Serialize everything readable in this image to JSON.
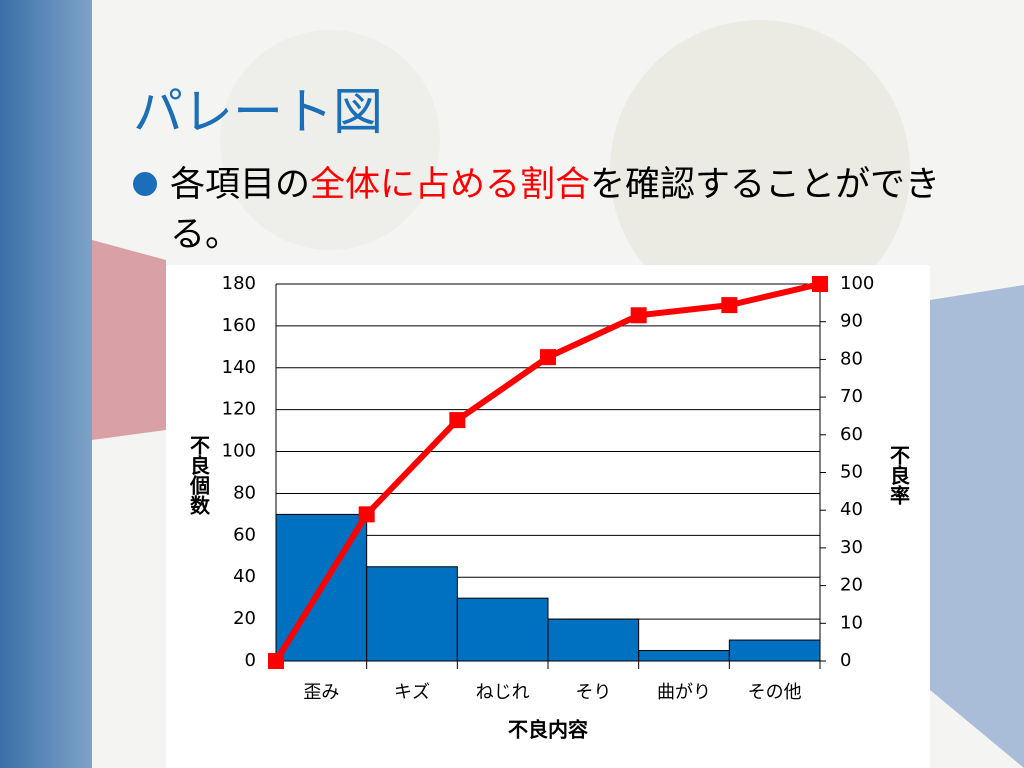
{
  "title": "パレート図",
  "bullet": {
    "parts": [
      "各項目の",
      "全体に占める割合",
      "を確認することができる。"
    ]
  },
  "chart_data": {
    "type": "pareto",
    "categories": [
      "歪み",
      "キズ",
      "ねじれ",
      "そり",
      "曲がり",
      "その他"
    ],
    "bars": {
      "values": [
        70,
        45,
        30,
        20,
        5,
        10
      ],
      "color": "#0070c0"
    },
    "cumulative": {
      "values": [
        0,
        38.9,
        63.9,
        80.6,
        91.7,
        94.4,
        100
      ],
      "color": "#ff0000",
      "axis": "y2"
    },
    "ylim": [
      0,
      180
    ],
    "yticks": [
      0,
      20,
      40,
      60,
      80,
      100,
      120,
      140,
      160,
      180
    ],
    "y2lim": [
      0,
      100
    ],
    "y2ticks": [
      0,
      10,
      20,
      30,
      40,
      50,
      60,
      70,
      80,
      90,
      100
    ],
    "y_label": "不良個数",
    "y2_label": "不良率",
    "x_label": "不良内容",
    "grid": true
  }
}
